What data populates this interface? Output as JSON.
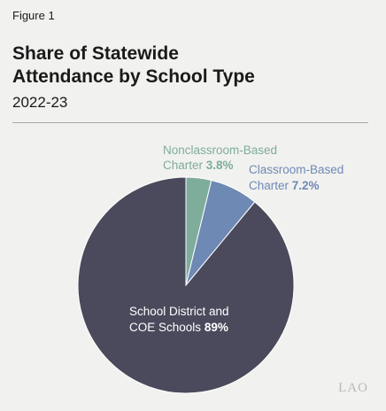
{
  "figure_label": "Figure 1",
  "title_line1": "Share of Statewide",
  "title_line2": "Attendance by School Type",
  "subtitle": "2022-23",
  "logo_text": "LAO",
  "colors": {
    "nonclassroom": "#7fad9c",
    "classroom": "#6f89b5",
    "district": "#4a4a5c",
    "background": "#f1f1ef"
  },
  "chart_data": {
    "type": "pie",
    "slices": [
      {
        "label_line1": "Nonclassroom-Based",
        "label_line2": "Charter",
        "value": 3.8,
        "value_text": "3.8%",
        "color": "#7fad9c"
      },
      {
        "label_line1": "Classroom-Based",
        "label_line2": "Charter",
        "value": 7.2,
        "value_text": "7.2%",
        "color": "#6f89b5"
      },
      {
        "label_line1": "School District and",
        "label_line2": "COE Schools",
        "value": 89,
        "value_text": "89%",
        "color": "#4a4a5c"
      }
    ]
  }
}
